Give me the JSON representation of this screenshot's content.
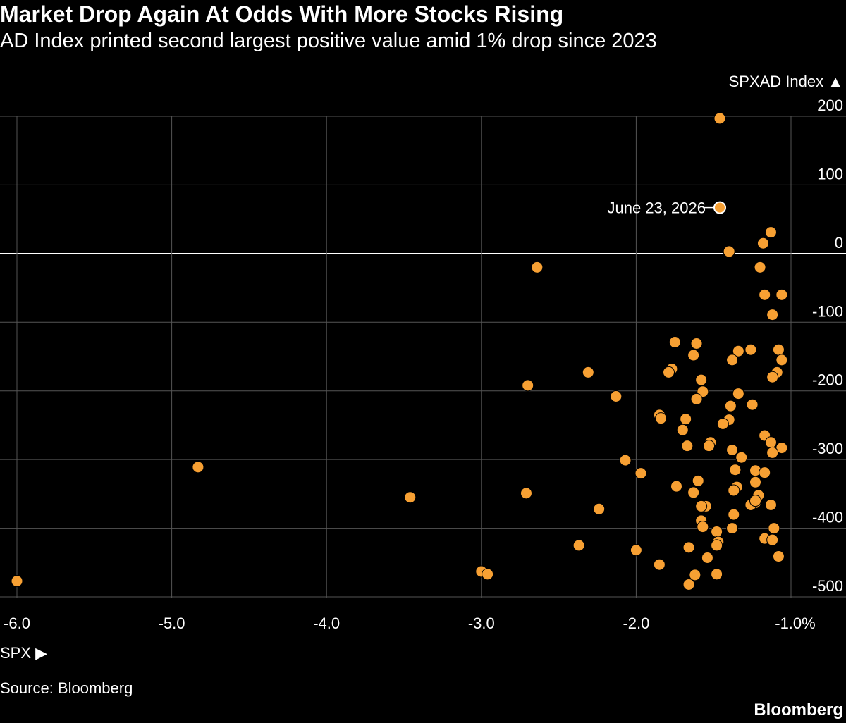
{
  "header": {
    "title": "Market Drop Again At Odds With More Stocks Rising",
    "subtitle": "AD Index printed second largest positive value amid 1% drop since 2023"
  },
  "footer": {
    "xaxis_label": "SPX ▶",
    "source": "Source: Bloomberg",
    "brand": "Bloomberg"
  },
  "colors": {
    "background": "#000000",
    "point": "#f7a033",
    "grid": "#555555",
    "zero_line": "#ffffff"
  },
  "chart_data": {
    "type": "scatter",
    "title": "Market Drop Again At Odds With More Stocks Rising",
    "xlabel": "SPX",
    "ylabel": "SPXAD Index ▲",
    "xlim": [
      -6.05,
      -0.95
    ],
    "ylim": [
      -505,
      210
    ],
    "grid": true,
    "x_ticks": [
      -6,
      -5,
      -4,
      -3,
      -2,
      -1
    ],
    "x_tick_labels": [
      "-6.0",
      "-5.0",
      "-4.0",
      "-3.0",
      "-2.0",
      "-1.0%"
    ],
    "y_ticks": [
      200,
      100,
      0,
      -100,
      -200,
      -300,
      -400,
      -500
    ],
    "y_tick_labels": [
      "200",
      "100",
      "0",
      "-100",
      "-200",
      "-300",
      "-400",
      "-500"
    ],
    "annotation": {
      "text": "June 23, 2026",
      "x": -1.46,
      "y": 67
    },
    "points": [
      [
        -1.46,
        197
      ],
      [
        -1.46,
        67
      ],
      [
        -1.13,
        31
      ],
      [
        -1.18,
        15
      ],
      [
        -1.4,
        3
      ],
      [
        -2.64,
        -20
      ],
      [
        -1.2,
        -20
      ],
      [
        -1.17,
        -60
      ],
      [
        -1.06,
        -60
      ],
      [
        -1.12,
        -89
      ],
      [
        -1.75,
        -129
      ],
      [
        -1.61,
        -131
      ],
      [
        -1.26,
        -140
      ],
      [
        -1.34,
        -142
      ],
      [
        -1.08,
        -140
      ],
      [
        -1.63,
        -148
      ],
      [
        -1.38,
        -155
      ],
      [
        -1.06,
        -155
      ],
      [
        -1.77,
        -168
      ],
      [
        -1.79,
        -173
      ],
      [
        -2.31,
        -173
      ],
      [
        -1.09,
        -173
      ],
      [
        -1.12,
        -180
      ],
      [
        -1.58,
        -184
      ],
      [
        -2.7,
        -192
      ],
      [
        -1.57,
        -201
      ],
      [
        -1.34,
        -204
      ],
      [
        -2.13,
        -208
      ],
      [
        -1.61,
        -212
      ],
      [
        -1.25,
        -220
      ],
      [
        -1.39,
        -222
      ],
      [
        -1.85,
        -235
      ],
      [
        -1.84,
        -240
      ],
      [
        -1.68,
        -241
      ],
      [
        -1.4,
        -242
      ],
      [
        -1.44,
        -248
      ],
      [
        -1.7,
        -257
      ],
      [
        -1.17,
        -265
      ],
      [
        -1.13,
        -275
      ],
      [
        -1.52,
        -275
      ],
      [
        -1.53,
        -280
      ],
      [
        -1.67,
        -280
      ],
      [
        -1.06,
        -283
      ],
      [
        -1.38,
        -286
      ],
      [
        -1.12,
        -290
      ],
      [
        -1.32,
        -297
      ],
      [
        -2.07,
        -301
      ],
      [
        -4.83,
        -311
      ],
      [
        -1.36,
        -315
      ],
      [
        -1.23,
        -316
      ],
      [
        -1.17,
        -319
      ],
      [
        -1.97,
        -320
      ],
      [
        -1.6,
        -331
      ],
      [
        -1.23,
        -333
      ],
      [
        -1.74,
        -339
      ],
      [
        -1.35,
        -340
      ],
      [
        -1.37,
        -345
      ],
      [
        -1.63,
        -348
      ],
      [
        -2.71,
        -349
      ],
      [
        -1.21,
        -352
      ],
      [
        -3.46,
        -355
      ],
      [
        -1.23,
        -363
      ],
      [
        -1.26,
        -366
      ],
      [
        -1.13,
        -366
      ],
      [
        -1.23,
        -360
      ],
      [
        -1.55,
        -368
      ],
      [
        -1.58,
        -368
      ],
      [
        -2.24,
        -372
      ],
      [
        -1.37,
        -380
      ],
      [
        -1.58,
        -389
      ],
      [
        -1.57,
        -398
      ],
      [
        -1.38,
        -400
      ],
      [
        -1.11,
        -400
      ],
      [
        -1.48,
        -405
      ],
      [
        -1.17,
        -415
      ],
      [
        -1.12,
        -417
      ],
      [
        -1.47,
        -420
      ],
      [
        -1.48,
        -425
      ],
      [
        -2.37,
        -425
      ],
      [
        -1.66,
        -428
      ],
      [
        -2.0,
        -432
      ],
      [
        -1.08,
        -441
      ],
      [
        -1.54,
        -443
      ],
      [
        -1.85,
        -453
      ],
      [
        -3.0,
        -463
      ],
      [
        -2.96,
        -467
      ],
      [
        -1.48,
        -467
      ],
      [
        -1.62,
        -468
      ],
      [
        -6.0,
        -477
      ],
      [
        -1.66,
        -482
      ]
    ]
  }
}
